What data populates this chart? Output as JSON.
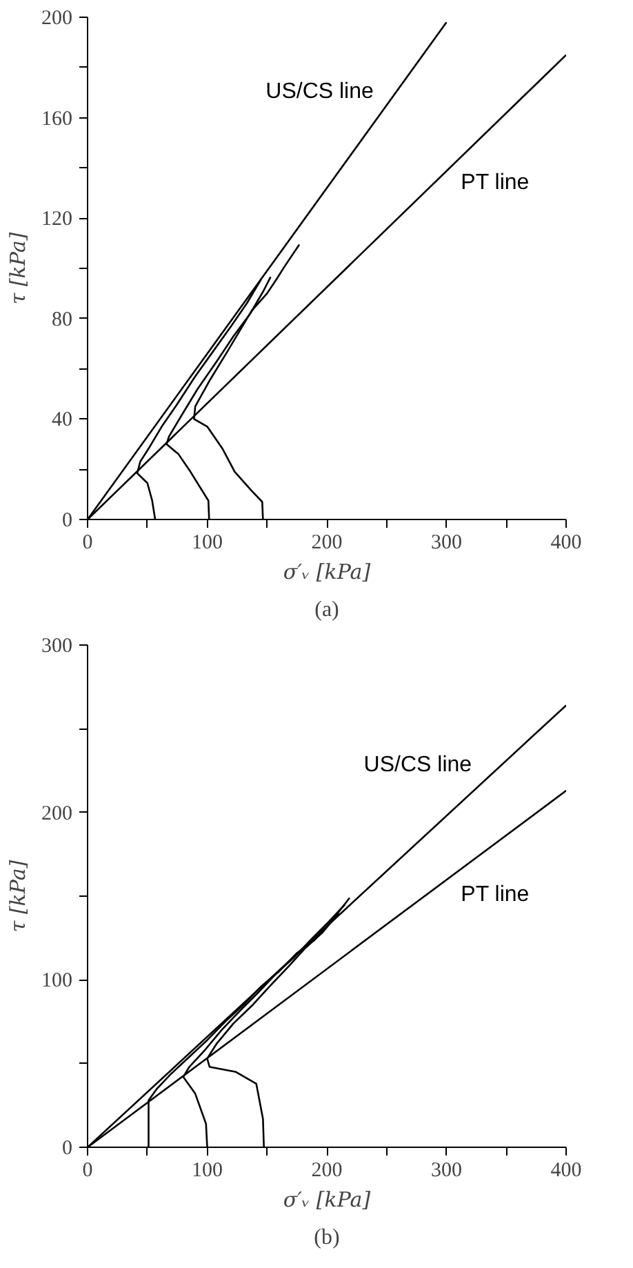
{
  "chart_data": [
    {
      "type": "line",
      "xlabel": "σ′ᵥ [kPa]",
      "ylabel": "τ [kPa]",
      "xlim": [
        0,
        400
      ],
      "ylim": [
        0,
        200
      ],
      "xticks": [
        0,
        {
          "value": 50,
          "label": null
        },
        100,
        {
          "value": 150,
          "label": null
        },
        200,
        {
          "value": 250,
          "label": null
        },
        300,
        {
          "value": 350,
          "label": null
        },
        400
      ],
      "yticks": [
        0,
        {
          "value": 20,
          "label": null
        },
        40,
        {
          "value": 60,
          "label": null
        },
        80,
        {
          "value": 100,
          "label": null
        },
        120,
        {
          "value": 140,
          "label": null
        },
        160,
        {
          "value": 180,
          "label": null
        },
        200
      ],
      "grid": false,
      "marker": "none",
      "line_style": "solid",
      "series": [
        {
          "name": "US/CS line",
          "color": "#000000",
          "x": [
            0,
            300
          ],
          "values": [
            0,
            198
          ]
        },
        {
          "name": "PT line",
          "color": "#000000",
          "x": [
            0,
            400
          ],
          "values": [
            0,
            185
          ]
        },
        {
          "color": "#000000",
          "x": [
            56.5,
            54,
            50,
            41.5,
            44,
            52,
            62,
            75,
            90,
            105,
            120,
            133,
            145
          ],
          "values": [
            0,
            7.5,
            14.5,
            18.4,
            23,
            29,
            37,
            46,
            57,
            67,
            77,
            86,
            95.6
          ]
        },
        {
          "color": "#000000",
          "x": [
            101.6,
            101,
            86,
            76,
            66,
            68,
            78,
            92,
            108,
            122,
            136,
            147,
            153
          ],
          "values": [
            0,
            7.5,
            19,
            26,
            30,
            33,
            41,
            52,
            63,
            73,
            82,
            91,
            96.6
          ]
        },
        {
          "color": "#000000",
          "x": [
            146.6,
            146,
            137,
            123,
            113,
            100,
            89,
            90,
            101.6,
            117,
            137,
            150,
            157,
            165,
            177
          ],
          "values": [
            0,
            7,
            11.5,
            19,
            28,
            37,
            40,
            45,
            55,
            67,
            83,
            90,
            95,
            101,
            109.5
          ]
        }
      ],
      "annotations": [
        "(a)"
      ]
    },
    {
      "type": "line",
      "xlabel": "σ′ᵥ [kPa]",
      "ylabel": "τ [kPa]",
      "xlim": [
        0,
        400
      ],
      "ylim": [
        0,
        300
      ],
      "xticks": [
        0,
        {
          "value": 50,
          "label": null
        },
        100,
        {
          "value": 150,
          "label": null
        },
        200,
        {
          "value": 250,
          "label": null
        },
        300,
        {
          "value": 350,
          "label": null
        },
        400
      ],
      "yticks": [
        0,
        {
          "value": 50,
          "label": null
        },
        100,
        {
          "value": 150,
          "label": null
        },
        200,
        {
          "value": 250,
          "label": null
        },
        300
      ],
      "grid": false,
      "marker": "none",
      "line_style": "solid",
      "series": [
        {
          "name": "US/CS line",
          "color": "#000000",
          "x": [
            0,
            400
          ],
          "values": [
            0,
            264
          ]
        },
        {
          "name": "PT line",
          "color": "#000000",
          "x": [
            0,
            400
          ],
          "values": [
            0,
            213
          ]
        },
        {
          "color": "#000000",
          "x": [
            51,
            51,
            58,
            70,
            85,
            100,
            115,
            130,
            145,
            160,
            175,
            190,
            205,
            219
          ],
          "values": [
            0,
            28,
            35,
            44,
            54,
            64,
            75,
            85,
            96,
            105,
            116,
            124,
            136,
            149
          ]
        },
        {
          "color": "#000000",
          "x": [
            100,
            99,
            90,
            80,
            85,
            98,
            112,
            128,
            142,
            158,
            172,
            188,
            202,
            215
          ],
          "values": [
            0,
            14,
            32,
            42,
            48,
            58,
            70,
            82,
            92,
            104,
            113,
            125,
            135,
            145
          ]
        },
        {
          "color": "#000000",
          "x": [
            147.4,
            146.6,
            141,
            124,
            102,
            100,
            108,
            122,
            138,
            152,
            168,
            182,
            196,
            210
          ],
          "values": [
            0,
            17,
            38,
            45,
            48,
            53,
            62,
            74,
            85,
            96,
            108,
            119,
            128,
            140
          ]
        }
      ],
      "annotations": [
        "(b)"
      ]
    }
  ]
}
